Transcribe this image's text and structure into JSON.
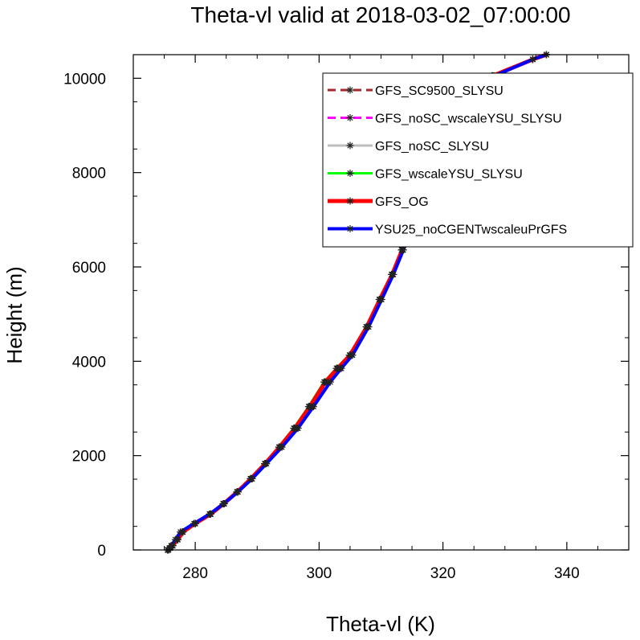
{
  "chart_data": {
    "type": "line",
    "title": "Theta-vl valid at 2018-03-02_07:00:00",
    "xlabel": "Theta-vl (K)",
    "ylabel": "Height (m)",
    "xlim": [
      270,
      350
    ],
    "ylim": [
      0,
      10500
    ],
    "xticks": [
      "280",
      "300",
      "320",
      "340"
    ],
    "yticks": [
      "0",
      "2000",
      "4000",
      "6000",
      "8000",
      "10000"
    ],
    "grid": false,
    "legend_position": "top-right",
    "series": [
      {
        "name": "GFS_SC9500_SLYSU",
        "color": "#a52a2a",
        "dash": "dashed",
        "width": 3,
        "x": [
          275.6,
          275.9,
          276.3,
          277.2,
          278.0,
          280.0,
          282.5,
          284.6,
          286.8,
          289.0,
          291.3,
          293.6,
          296.1,
          298.5,
          301.0,
          303.0,
          305.0,
          307.7,
          309.8,
          311.8,
          313.4,
          315.0,
          316.4,
          317.3,
          317.9,
          319.8,
          328.0,
          334.5,
          336.7
        ],
        "y": [
          0,
          40,
          90,
          220,
          380,
          560,
          760,
          980,
          1230,
          1510,
          1830,
          2180,
          2580,
          3040,
          3560,
          3850,
          4130,
          4730,
          5310,
          5840,
          6360,
          6850,
          7780,
          8250,
          8970,
          9340,
          10050,
          10400,
          10500
        ]
      },
      {
        "name": "GFS_noSC_wscaleYSU_SLYSU",
        "color": "#ff00ff",
        "dash": "dashed",
        "width": 3,
        "x": [
          275.7,
          276.0,
          276.4,
          277.1,
          277.9,
          280.0,
          282.5,
          284.7,
          286.9,
          289.1,
          291.4,
          293.8,
          296.4,
          298.9,
          301.5,
          303.4,
          305.3,
          307.9,
          310.0,
          311.9,
          313.5,
          315.1,
          316.5,
          317.4,
          318.0,
          320.1,
          328.1,
          334.5,
          336.7
        ],
        "y": [
          0,
          40,
          90,
          220,
          380,
          560,
          760,
          980,
          1230,
          1510,
          1830,
          2180,
          2580,
          3040,
          3560,
          3850,
          4130,
          4730,
          5310,
          5840,
          6360,
          6850,
          7780,
          8250,
          8970,
          9340,
          10050,
          10400,
          10500
        ]
      },
      {
        "name": "GFS_noSC_SLYSU",
        "color": "#bebebe",
        "dash": "solid",
        "width": 3,
        "x": [
          275.6,
          275.9,
          276.3,
          277.1,
          278.0,
          280.0,
          282.4,
          284.6,
          286.8,
          289.0,
          291.3,
          293.6,
          296.0,
          298.4,
          300.9,
          302.9,
          305.0,
          307.7,
          309.8,
          311.8,
          313.4,
          315.0,
          316.4,
          317.3,
          317.9,
          319.8,
          328.0,
          334.5,
          336.7
        ],
        "y": [
          0,
          40,
          90,
          220,
          380,
          560,
          760,
          980,
          1230,
          1510,
          1830,
          2180,
          2580,
          3040,
          3560,
          3850,
          4130,
          4730,
          5310,
          5840,
          6360,
          6850,
          7780,
          8250,
          8970,
          9340,
          10050,
          10400,
          10500
        ]
      },
      {
        "name": "GFS_wscaleYSU_SLYSU",
        "color": "#00ff00",
        "dash": "solid",
        "width": 3,
        "x": [
          275.6,
          275.9,
          276.3,
          277.1,
          277.9,
          280.0,
          282.4,
          284.5,
          286.7,
          288.9,
          291.2,
          293.5,
          295.9,
          298.3,
          300.8,
          302.8,
          304.9,
          307.6,
          309.7,
          311.7,
          313.3,
          314.9,
          316.3,
          317.2,
          317.8,
          319.7,
          327.9,
          334.5,
          336.7
        ],
        "y": [
          0,
          40,
          90,
          220,
          380,
          560,
          760,
          980,
          1230,
          1510,
          1830,
          2180,
          2580,
          3040,
          3560,
          3850,
          4130,
          4730,
          5310,
          5840,
          6360,
          6850,
          7780,
          8250,
          8970,
          9340,
          10050,
          10400,
          10500
        ]
      },
      {
        "name": "GFS_OG",
        "color": "#ff0000",
        "dash": "solid",
        "width": 5,
        "x": [
          275.6,
          275.9,
          276.3,
          277.2,
          278.0,
          280.0,
          282.5,
          284.6,
          286.8,
          289.0,
          291.3,
          293.6,
          296.1,
          298.5,
          301.0,
          303.0,
          305.0,
          307.7,
          309.8,
          311.8,
          313.4,
          315.0,
          316.4,
          317.3,
          317.9,
          319.8,
          328.0,
          334.5,
          336.7
        ],
        "y": [
          0,
          40,
          90,
          220,
          380,
          560,
          760,
          980,
          1230,
          1510,
          1830,
          2180,
          2580,
          3040,
          3560,
          3850,
          4130,
          4730,
          5310,
          5840,
          6360,
          6850,
          7780,
          8250,
          8970,
          9340,
          10050,
          10400,
          10500
        ]
      },
      {
        "name": "YSU25_noCGENTwscaleuPrGFS",
        "color": "#0000ff",
        "dash": "solid",
        "width": 4,
        "x": [
          275.5,
          275.8,
          276.1,
          276.8,
          277.6,
          279.8,
          282.3,
          284.6,
          286.9,
          289.2,
          291.5,
          294.0,
          296.6,
          299.1,
          301.8,
          303.6,
          305.4,
          308.0,
          310.1,
          312.0,
          313.6,
          315.2,
          316.6,
          317.5,
          318.1,
          320.4,
          328.3,
          334.5,
          336.7
        ],
        "y": [
          0,
          40,
          90,
          220,
          380,
          560,
          760,
          980,
          1230,
          1510,
          1830,
          2180,
          2580,
          3040,
          3560,
          3850,
          4130,
          4730,
          5310,
          5840,
          6360,
          6850,
          7780,
          8250,
          8970,
          9340,
          10050,
          10400,
          10500
        ]
      }
    ]
  }
}
